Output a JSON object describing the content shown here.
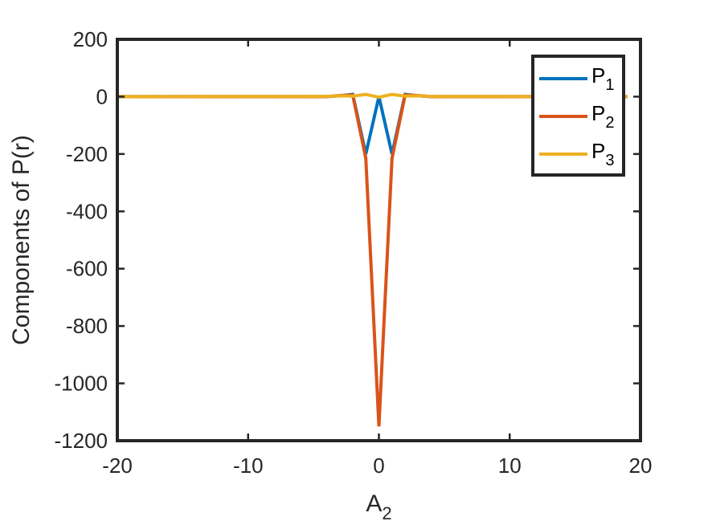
{
  "chart_data": {
    "type": "line",
    "xlabel": {
      "main": "A",
      "sub": "2"
    },
    "ylabel": "Components of P(r)",
    "xlim": [
      -20,
      20
    ],
    "ylim": [
      -1200,
      200
    ],
    "xticks": [
      -20,
      -10,
      0,
      10,
      20
    ],
    "yticks": [
      200,
      0,
      -200,
      -400,
      -600,
      -800,
      -1000,
      -1200
    ],
    "grid": false,
    "legend_position": "top-right",
    "series": [
      {
        "name": "P",
        "sub": "1",
        "color": "#0072BD",
        "x": [
          -20,
          -4,
          -3,
          -2,
          -1,
          0,
          1,
          2,
          3,
          4,
          19
        ],
        "y": [
          0,
          0,
          3,
          8,
          -200,
          0,
          -200,
          8,
          3,
          0,
          0
        ]
      },
      {
        "name": "P",
        "sub": "2",
        "color": "#D95319",
        "x": [
          -20,
          -4,
          -3,
          -2,
          -1,
          0,
          1,
          2,
          3,
          4,
          19
        ],
        "y": [
          0,
          0,
          4,
          6,
          -215,
          -1150,
          -215,
          6,
          4,
          0,
          0
        ]
      },
      {
        "name": "P",
        "sub": "3",
        "color": "#EDB120",
        "x": [
          -20,
          -4,
          -3,
          -2,
          -1,
          0,
          1,
          2,
          3,
          4,
          19
        ],
        "y": [
          0,
          1,
          3,
          2,
          8,
          -2,
          8,
          2,
          3,
          1,
          0
        ]
      }
    ]
  }
}
